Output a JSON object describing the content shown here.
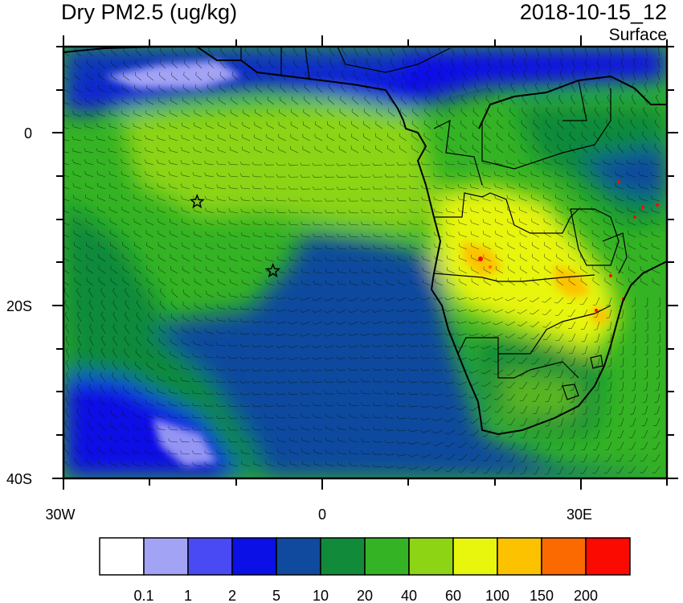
{
  "header": {
    "title": "Dry PM2.5 (ug/kg)",
    "datetime": "2018-10-15_12",
    "level": "Surface"
  },
  "axes": {
    "y_ticks": [
      "0",
      "20S",
      "40S"
    ],
    "x_ticks": [
      "30W",
      "0",
      "30E"
    ]
  },
  "colorbar": {
    "colors": [
      "#ffffff",
      "#a3a3f5",
      "#4a4af5",
      "#0a10e6",
      "#0f4a9e",
      "#118a3a",
      "#34b324",
      "#8cd414",
      "#e8f50c",
      "#fcc200",
      "#fa6a00",
      "#fa0a00"
    ],
    "labels": [
      "0.1",
      "1",
      "2",
      "5",
      "10",
      "20",
      "40",
      "60",
      "100",
      "150",
      "200"
    ]
  },
  "markers": [
    {
      "name": "star-marker-1",
      "lon": -14.5,
      "lat": -8
    },
    {
      "name": "star-marker-2",
      "lon": -5.7,
      "lat": -16
    }
  ]
}
